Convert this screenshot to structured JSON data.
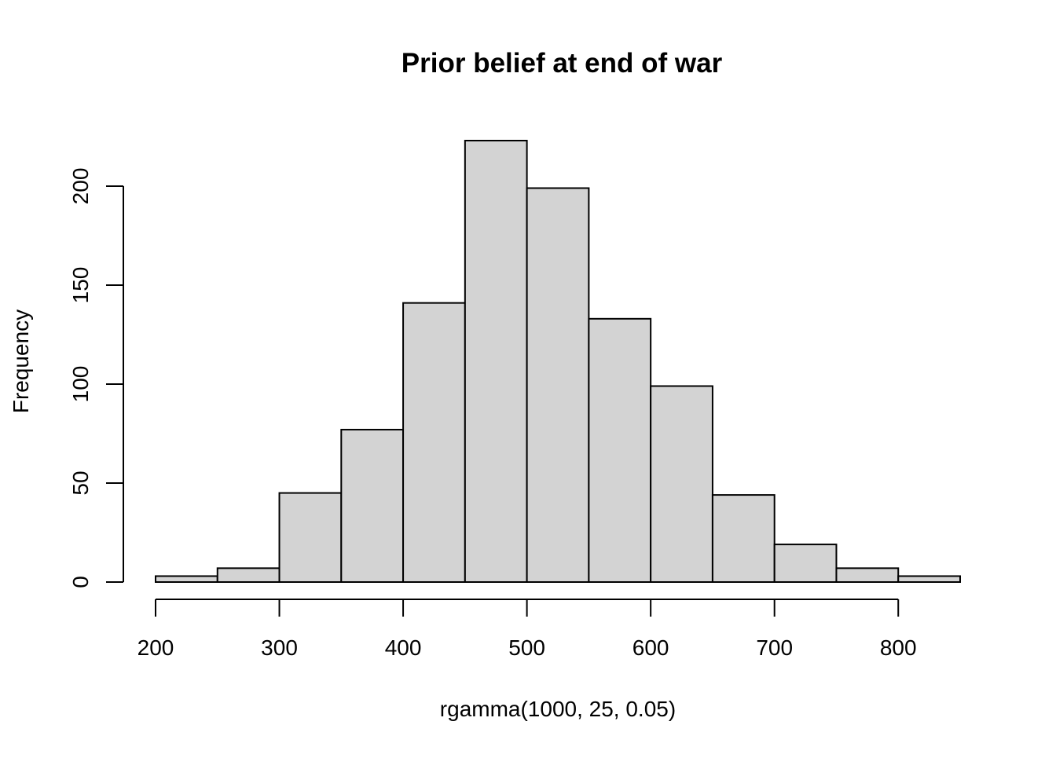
{
  "chart_data": {
    "type": "histogram",
    "title": "Prior belief at end of war",
    "xlabel": "rgamma(1000, 25, 0.05)",
    "ylabel": "Frequency",
    "bin_edges": [
      200,
      250,
      300,
      350,
      400,
      450,
      500,
      550,
      600,
      650,
      700,
      750,
      800,
      850
    ],
    "counts": [
      3,
      7,
      45,
      77,
      141,
      223,
      199,
      133,
      99,
      44,
      19,
      7,
      3
    ],
    "xlim": [
      200,
      850
    ],
    "ylim": [
      0,
      223
    ],
    "x_ticks": [
      200,
      300,
      400,
      500,
      600,
      700,
      800
    ],
    "y_ticks": [
      0,
      50,
      100,
      150,
      200
    ],
    "bar_fill": "#d3d3d3",
    "bar_stroke": "#000000",
    "grid": false
  }
}
